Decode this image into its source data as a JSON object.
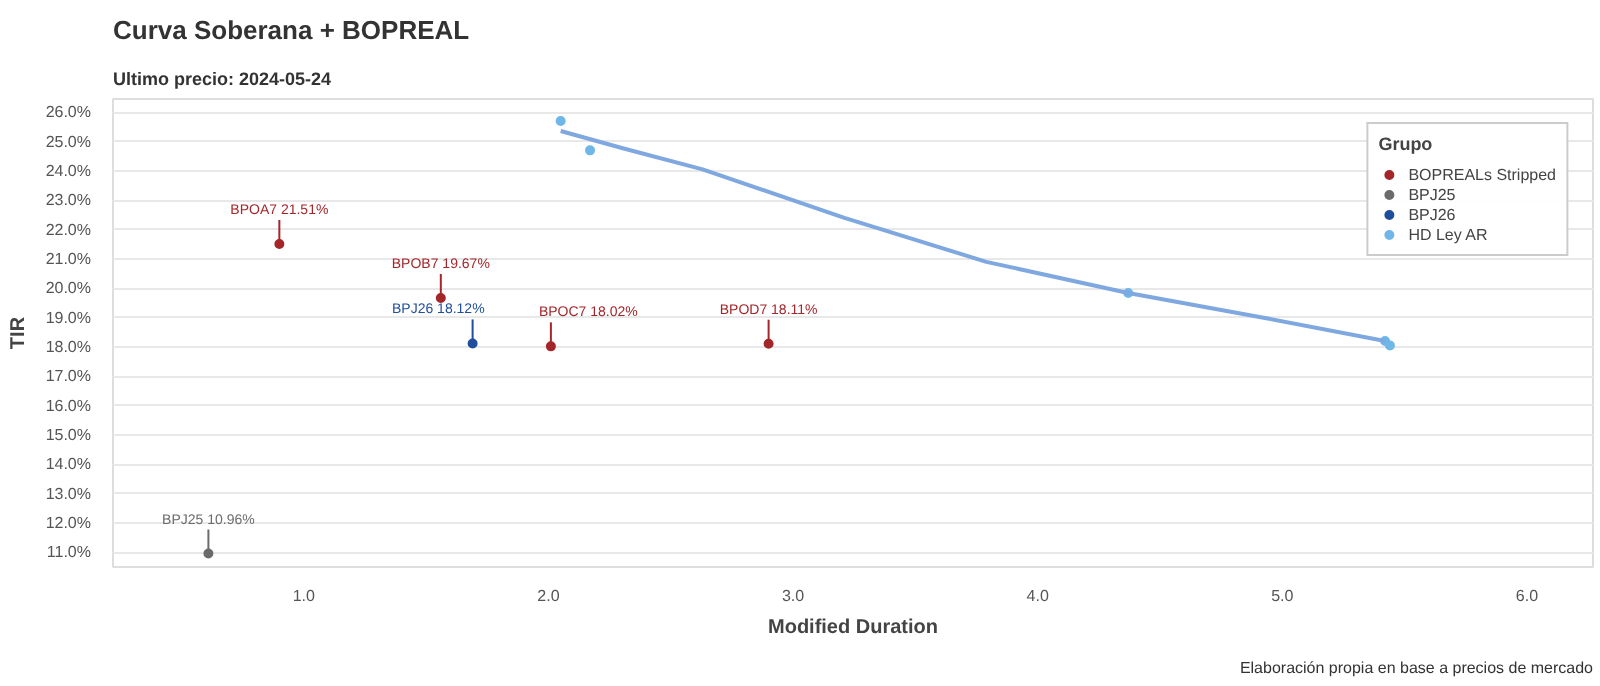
{
  "chart_data": {
    "type": "scatter",
    "title": "Curva Soberana + BOPREAL",
    "subtitle": "Ultimo precio: 2024-05-24",
    "xlabel": "Modified Duration",
    "ylabel": "TIR",
    "legend_title": "Grupo",
    "series": [
      {
        "name": "BOPREALs Stripped",
        "color": "#a3262a",
        "x": [
          0.9,
          1.56,
          2.01,
          2.9
        ],
        "values": [
          21.51,
          19.67,
          18.02,
          18.11
        ]
      },
      {
        "name": "BPJ25",
        "color": "#6b6b6b",
        "x": [
          0.61
        ],
        "values": [
          10.96
        ]
      },
      {
        "name": "BPJ26",
        "color": "#1f4e9c",
        "x": [
          1.69
        ],
        "values": [
          18.12
        ]
      },
      {
        "name": "HD Ley AR",
        "color": "#6fb7e8",
        "x": [
          2.05,
          2.17,
          4.37,
          5.42,
          5.44
        ],
        "values": [
          25.7,
          24.7,
          19.84,
          18.2,
          18.05
        ]
      },
      {
        "type": "line",
        "marker": "none",
        "color": "#7fa8e0",
        "x": [
          2.05,
          2.3,
          2.63,
          3.21,
          3.79,
          4.37,
          4.94,
          5.42
        ],
        "values": [
          25.36,
          24.78,
          24.05,
          22.4,
          20.9,
          19.84,
          18.97,
          18.2
        ]
      }
    ],
    "annotations": [
      {
        "text": "BPOA7 21.51%",
        "x": 0.9,
        "y": 21.51
      },
      {
        "text": "BPOB7 19.67%",
        "x": 1.56,
        "y": 19.67
      },
      {
        "text": "BPJ26 18.12%",
        "x": 1.69,
        "y": 18.12
      },
      {
        "text": "BPOC7 18.02%",
        "x": 2.01,
        "y": 18.02
      },
      {
        "text": "BPOD7 18.11%",
        "x": 2.9,
        "y": 18.11
      },
      {
        "text": "BPJ25 10.96%",
        "x": 0.61,
        "y": 10.96
      },
      "Elaboración propia en base a precios de mercado"
    ],
    "xlim": [
      0.22,
      6.27
    ],
    "ylim": [
      10.5,
      26.45
    ],
    "xticks": [
      {
        "value": 1,
        "label": "1.0"
      },
      {
        "value": 2,
        "label": "2.0"
      },
      {
        "value": 3,
        "label": "3.0"
      },
      {
        "value": 4,
        "label": "4.0"
      },
      {
        "value": 5,
        "label": "5.0"
      },
      {
        "value": 6,
        "label": "6.0"
      }
    ],
    "yticks": [
      {
        "value": 11,
        "label": "11.0%"
      },
      {
        "value": 12,
        "label": "12.0%"
      },
      {
        "value": 13,
        "label": "13.0%"
      },
      {
        "value": 14,
        "label": "14.0%"
      },
      {
        "value": 15,
        "label": "15.0%"
      },
      {
        "value": 16,
        "label": "16.0%"
      },
      {
        "value": 17,
        "label": "17.0%"
      },
      {
        "value": 18,
        "label": "18.0%"
      },
      {
        "value": 19,
        "label": "19.0%"
      },
      {
        "value": 20,
        "label": "20.0%"
      },
      {
        "value": 21,
        "label": "21.0%"
      },
      {
        "value": 22,
        "label": "22.0%"
      },
      {
        "value": 23,
        "label": "23.0%"
      },
      {
        "value": 24,
        "label": "24.0%"
      },
      {
        "value": 25,
        "label": "25.0%"
      },
      {
        "value": 26,
        "label": "26.0%"
      }
    ],
    "grid": "y",
    "legend": "top right",
    "marker": "circle"
  }
}
